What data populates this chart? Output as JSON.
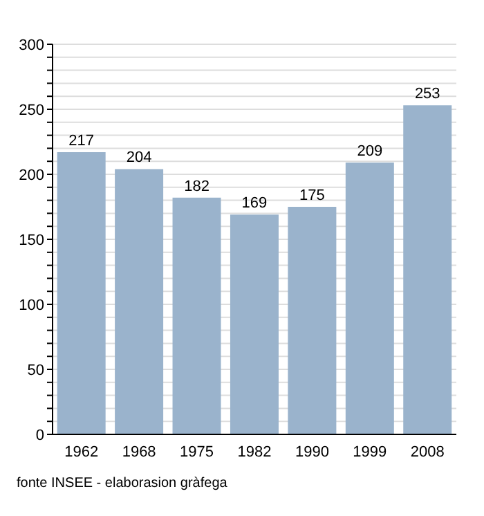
{
  "chart_data": {
    "type": "bar",
    "categories": [
      "1962",
      "1968",
      "1975",
      "1982",
      "1990",
      "1999",
      "2008"
    ],
    "values": [
      217,
      204,
      182,
      169,
      175,
      209,
      253
    ],
    "color": "#9ab3cc",
    "data_labels": true,
    "ylim": [
      0,
      300
    ],
    "yticks": [
      0,
      {
        "value": 10,
        "label": null
      },
      {
        "value": 20,
        "label": null
      },
      {
        "value": 30,
        "label": null
      },
      {
        "value": 40,
        "label": null
      },
      50,
      {
        "value": 60,
        "label": null
      },
      {
        "value": 70,
        "label": null
      },
      {
        "value": 80,
        "label": null
      },
      {
        "value": 90,
        "label": null
      },
      100,
      {
        "value": 110,
        "label": null
      },
      {
        "value": 120,
        "label": null
      },
      {
        "value": 130,
        "label": null
      },
      {
        "value": 140,
        "label": null
      },
      150,
      {
        "value": 160,
        "label": null
      },
      {
        "value": 170,
        "label": null
      },
      {
        "value": 180,
        "label": null
      },
      {
        "value": 190,
        "label": null
      },
      200,
      {
        "value": 210,
        "label": null
      },
      {
        "value": 220,
        "label": null
      },
      {
        "value": 230,
        "label": null
      },
      {
        "value": 240,
        "label": null
      },
      250,
      {
        "value": 260,
        "label": null
      },
      {
        "value": 270,
        "label": null
      },
      {
        "value": 280,
        "label": null
      },
      {
        "value": 290,
        "label": null
      },
      300
    ],
    "grid": "y",
    "legend": false,
    "annotations": [
      "fonte INSEE - elaborasion gràfega"
    ]
  }
}
